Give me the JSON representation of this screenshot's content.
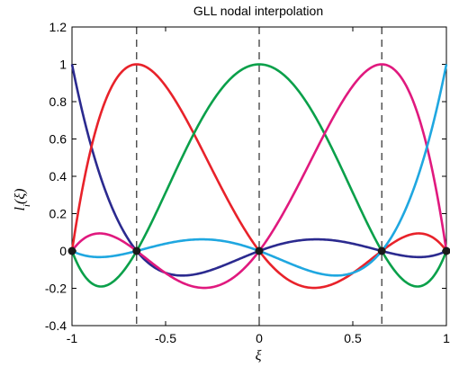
{
  "chart_data": {
    "type": "line",
    "title": "GLL nodal interpolation",
    "xlabel": "ξ",
    "ylabel": "l",
    "ylabel_sub": "i",
    "ylabel_arg": "(ξ)",
    "xlim": [
      -1,
      1
    ],
    "ylim": [
      -0.4,
      1.2
    ],
    "xticks": [
      -1,
      -0.5,
      0,
      0.5,
      1
    ],
    "xtick_labels": [
      "-1",
      "-0.5",
      "0",
      "0.5",
      "1"
    ],
    "yticks": [
      -0.4,
      -0.2,
      0,
      0.2,
      0.4,
      0.6,
      0.8,
      1,
      1.2
    ],
    "ytick_labels": [
      "-0.4",
      "-0.2",
      "0",
      "0.2",
      "0.4",
      "0.6",
      "0.8",
      "1",
      "1.2"
    ],
    "grid": false,
    "nodes": [
      -1,
      -0.6547,
      0,
      0.6547,
      1
    ],
    "series": [
      {
        "color": "#2b2a8f",
        "node_index": 0
      },
      {
        "color": "#e8222a",
        "node_index": 1
      },
      {
        "color": "#0aa04a",
        "node_index": 2
      },
      {
        "color": "#e0197e",
        "node_index": 3
      },
      {
        "color": "#1fa7e0",
        "node_index": 4
      }
    ],
    "node_marker_color": "#1a1a1a",
    "dashed_line_color": "#000000"
  }
}
